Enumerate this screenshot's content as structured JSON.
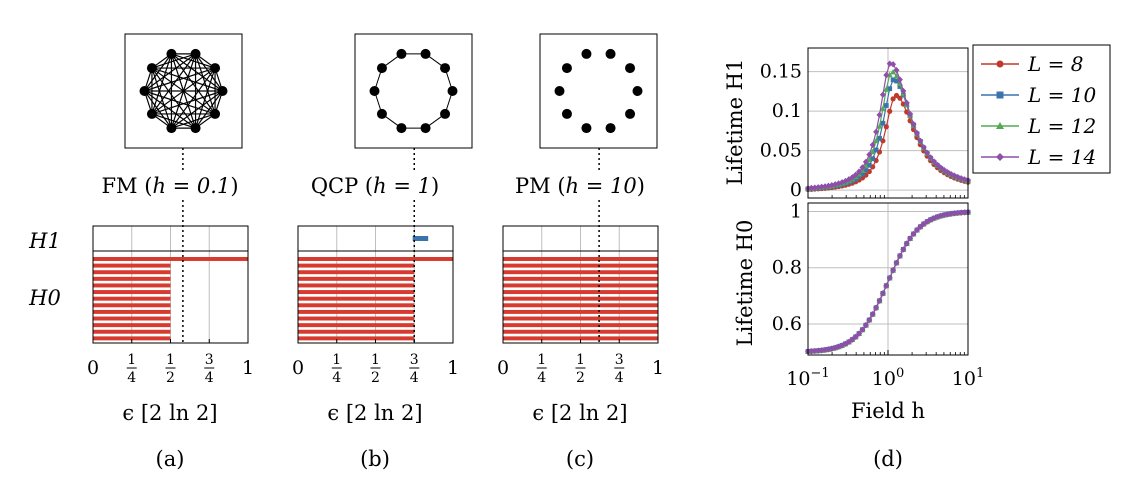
{
  "colors": {
    "h0_bar": "#d73a2e",
    "h1_bar": "#3b73ad",
    "grid": "#bfbfbf"
  },
  "panels": [
    {
      "id": "a",
      "caption": "(a)",
      "phase": "FM",
      "field_label": "h = 0.1",
      "graph": "complete",
      "row_labels": [
        "H1",
        "H0"
      ],
      "xlabel": "ϵ [2 ln 2]",
      "vline_eps": 0.58,
      "h1_bars": [],
      "h0_bars_eps": [
        1,
        0.5,
        0.5,
        0.5,
        0.5,
        0.5,
        0.5,
        0.5,
        0.5,
        0.5,
        0.5,
        0.5,
        0.5
      ]
    },
    {
      "id": "b",
      "caption": "(b)",
      "phase": "QCP",
      "field_label": "h = 1",
      "graph": "ring",
      "row_labels": [
        "H1",
        "H0"
      ],
      "xlabel": "ϵ [2 ln 2]",
      "vline_eps": 0.75,
      "h1_bars": [
        [
          0.74,
          0.84
        ]
      ],
      "h0_bars_eps": [
        1,
        0.75,
        0.75,
        0.75,
        0.75,
        0.75,
        0.75,
        0.75,
        0.75,
        0.75,
        0.75,
        0.75,
        0.75
      ]
    },
    {
      "id": "c",
      "caption": "(c)",
      "phase": "PM",
      "field_label": "h = 10",
      "graph": "none",
      "row_labels": [
        "H1",
        "H0"
      ],
      "xlabel": "ϵ [2 ln 2]",
      "vline_eps": 0.62,
      "h1_bars": [],
      "h0_bars_eps": [
        1,
        1,
        1,
        1,
        1,
        1,
        1,
        1,
        1,
        1,
        1,
        1,
        1
      ]
    }
  ],
  "ticks": [
    "0",
    "1/4",
    "1/2",
    "3/4",
    "1"
  ],
  "panel_d": {
    "caption": "(d)",
    "xlabel": "Field h",
    "ylabel_top": "Lifetime H1",
    "ylabel_bottom": "Lifetime H0",
    "xscale": "log",
    "xlim": [
      0.1,
      10
    ],
    "xticks": [
      "10−1",
      "100",
      "101"
    ],
    "ylim_top": [
      -0.01,
      0.18
    ],
    "yticks_top": [
      "0",
      "0.05",
      "0.1",
      "0.15"
    ],
    "ylim_bottom": [
      0.49,
      1.03
    ],
    "yticks_bottom": [
      "0.6",
      "0.8",
      "1"
    ],
    "legend": [
      "L = 8",
      "L = 10",
      "L = 12",
      "L = 14"
    ]
  },
  "chart_data": {
    "type": "line",
    "x_scale": "log",
    "series": [
      {
        "name": "L = 8",
        "color": "#c0392b",
        "marker": "circle",
        "peak_h1": 0.122,
        "peak_at": 1.25
      },
      {
        "name": "L = 10",
        "color": "#3b73ad",
        "marker": "square",
        "peak_h1": 0.142,
        "peak_at": 1.18
      },
      {
        "name": "L = 12",
        "color": "#55a855",
        "marker": "triangle",
        "peak_h1": 0.152,
        "peak_at": 1.12
      },
      {
        "name": "L = 14",
        "color": "#8e4fa8",
        "marker": "diamond",
        "peak_h1": 0.163,
        "peak_at": 1.08
      }
    ],
    "h0_curve": {
      "x": [
        0.1,
        0.3,
        0.5,
        0.8,
        1.0,
        1.5,
        2.0,
        3.0,
        5.0,
        10.0
      ],
      "y": [
        0.5,
        0.525,
        0.56,
        0.665,
        0.745,
        0.87,
        0.925,
        0.965,
        0.985,
        0.995
      ]
    }
  }
}
